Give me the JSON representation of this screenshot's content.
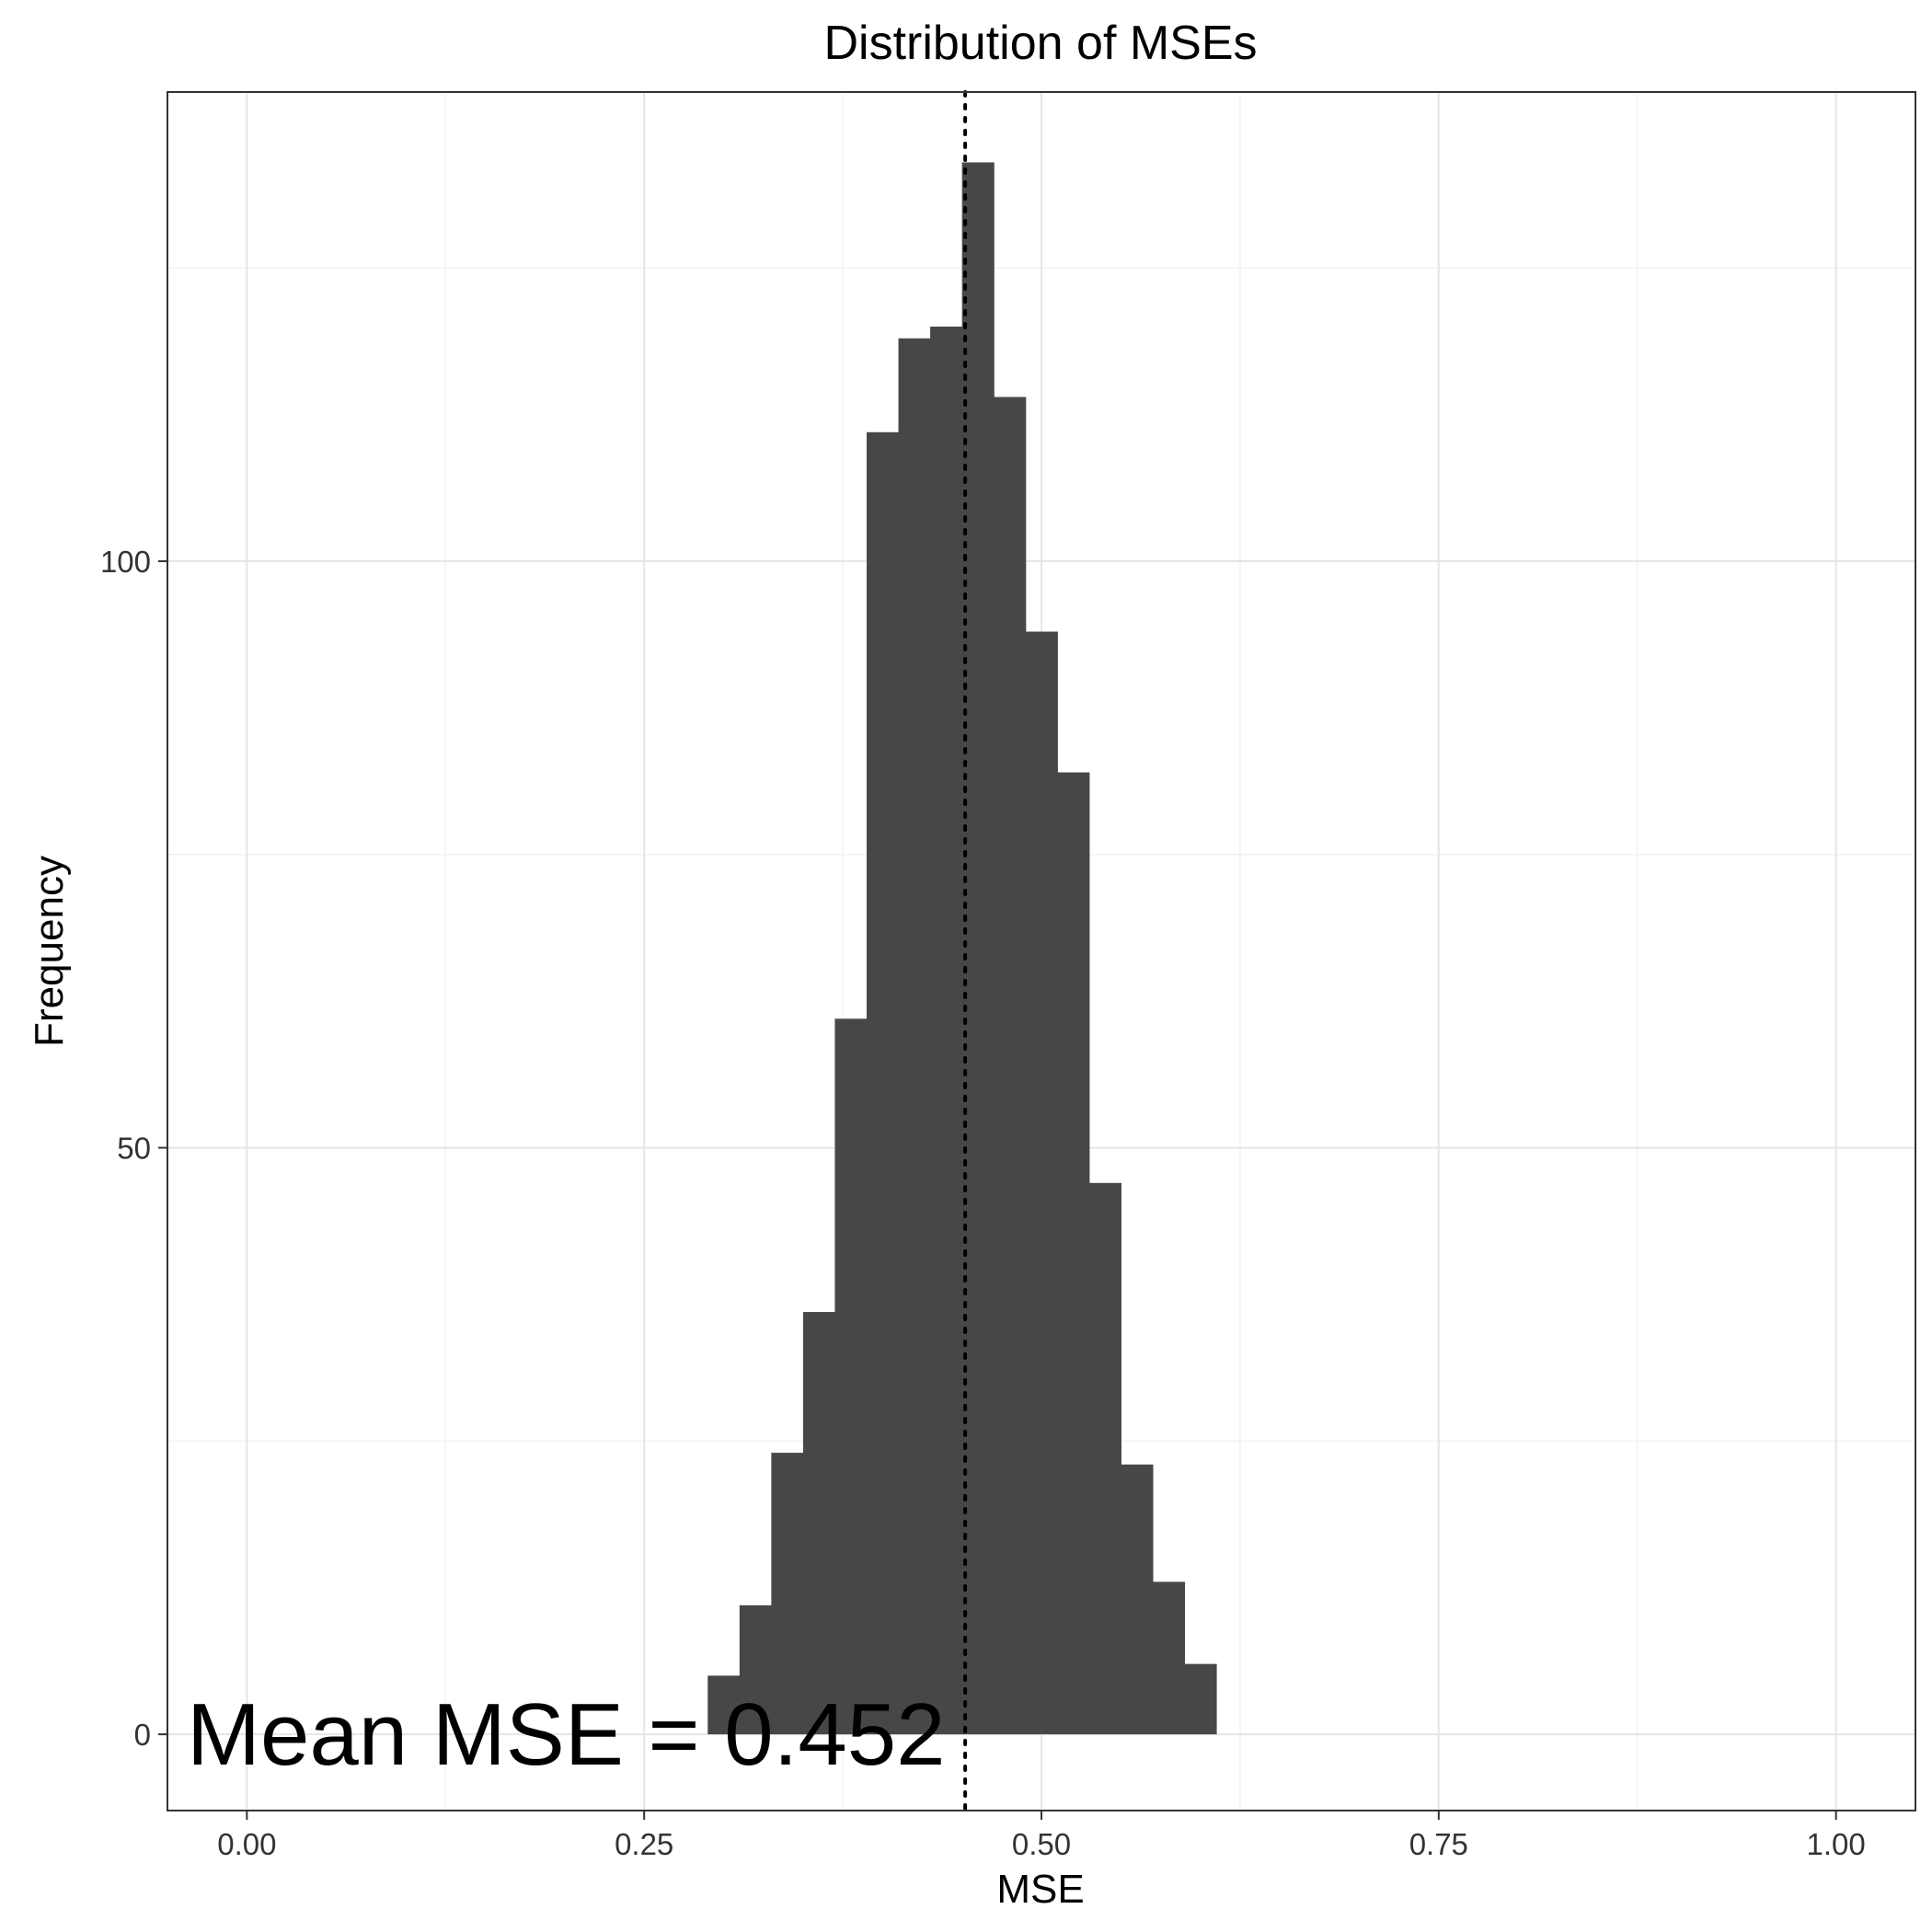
{
  "chart_data": {
    "type": "bar",
    "title": "Distribution of MSEs",
    "xlabel": "MSE",
    "ylabel": "Frequency",
    "xlim": [
      -0.05,
      1.05
    ],
    "ylim": [
      -6.5,
      140
    ],
    "x_ticks": [
      0,
      0.25,
      0.5,
      0.75,
      1
    ],
    "x_tick_labels": [
      "0.00",
      "0.25",
      "0.50",
      "0.75",
      "1.00"
    ],
    "y_ticks": [
      0,
      50,
      100
    ],
    "y_tick_labels": [
      "0",
      "50",
      "100"
    ],
    "grid": true,
    "bar_color": "#474747",
    "bins": [
      {
        "x0": 0.29,
        "x1": 0.31,
        "count": 5
      },
      {
        "x0": 0.31,
        "x1": 0.33,
        "count": 11
      },
      {
        "x0": 0.33,
        "x1": 0.35,
        "count": 24
      },
      {
        "x0": 0.35,
        "x1": 0.37,
        "count": 36
      },
      {
        "x0": 0.37,
        "x1": 0.39,
        "count": 61
      },
      {
        "x0": 0.39,
        "x1": 0.41,
        "count": 111
      },
      {
        "x0": 0.41,
        "x1": 0.43,
        "count": 119
      },
      {
        "x0": 0.43,
        "x1": 0.45,
        "count": 120
      },
      {
        "x0": 0.45,
        "x1": 0.47,
        "count": 134
      },
      {
        "x0": 0.47,
        "x1": 0.49,
        "count": 114
      },
      {
        "x0": 0.49,
        "x1": 0.51,
        "count": 94
      },
      {
        "x0": 0.51,
        "x1": 0.53,
        "count": 82
      },
      {
        "x0": 0.53,
        "x1": 0.55,
        "count": 47
      },
      {
        "x0": 0.55,
        "x1": 0.57,
        "count": 23
      },
      {
        "x0": 0.57,
        "x1": 0.59,
        "count": 13
      },
      {
        "x0": 0.59,
        "x1": 0.61,
        "count": 6
      }
    ],
    "mean_line": {
      "x": 0.452,
      "style": "dotted"
    },
    "annotation": "Mean MSE = 0.452"
  }
}
